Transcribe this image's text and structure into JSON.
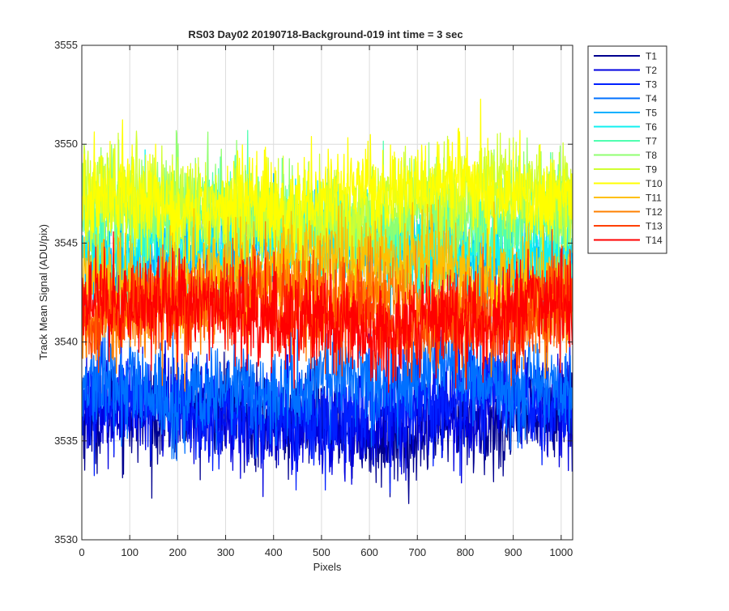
{
  "chart_data": {
    "type": "line",
    "title": "RS03 Day02 20190718-Background-019 int time = 3 sec",
    "xlabel": "Pixels",
    "ylabel": "Track Mean Signal (ADU/pix)",
    "xlim": [
      0,
      1024
    ],
    "ylim": [
      3530,
      3555
    ],
    "xticks": [
      0,
      100,
      200,
      300,
      400,
      500,
      600,
      700,
      800,
      900,
      1000
    ],
    "yticks": [
      3530,
      3535,
      3540,
      3545,
      3550,
      3555
    ],
    "grid": true,
    "legend_position": "outside-top-right",
    "series": [
      {
        "name": "T1",
        "color": "#00008f",
        "mean": 3536.0,
        "noise": 1.2
      },
      {
        "name": "T2",
        "color": "#0000e0",
        "mean": 3536.3,
        "noise": 1.2
      },
      {
        "name": "T3",
        "color": "#0020ff",
        "mean": 3536.8,
        "noise": 1.2
      },
      {
        "name": "T4",
        "color": "#0070ff",
        "mean": 3537.8,
        "noise": 1.2
      },
      {
        "name": "T5",
        "color": "#00b0ff",
        "mean": 3544.5,
        "noise": 1.2
      },
      {
        "name": "T6",
        "color": "#10f0f0",
        "mean": 3545.0,
        "noise": 1.2
      },
      {
        "name": "T7",
        "color": "#50ffb0",
        "mean": 3546.0,
        "noise": 1.2
      },
      {
        "name": "T8",
        "color": "#90ff70",
        "mean": 3546.5,
        "noise": 1.2
      },
      {
        "name": "T9",
        "color": "#d0ff30",
        "mean": 3547.0,
        "noise": 1.2
      },
      {
        "name": "T10",
        "color": "#ffff00",
        "mean": 3547.3,
        "noise": 1.2
      },
      {
        "name": "T11",
        "color": "#ffc000",
        "mean": 3543.5,
        "noise": 1.2
      },
      {
        "name": "T12",
        "color": "#ff8000",
        "mean": 3542.0,
        "noise": 1.2
      },
      {
        "name": "T13",
        "color": "#ff4000",
        "mean": 3541.5,
        "noise": 1.2
      },
      {
        "name": "T14",
        "color": "#ff0000",
        "mean": 3541.3,
        "noise": 1.2
      }
    ]
  }
}
